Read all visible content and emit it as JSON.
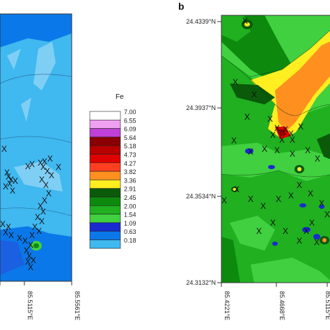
{
  "panel_b_label": "b",
  "legend": {
    "title": "Fe",
    "classes": [
      {
        "value": "7.00",
        "color": "#ffffff"
      },
      {
        "value": "6.55",
        "color": "#f0a0f0"
      },
      {
        "value": "6.09",
        "color": "#c040d8"
      },
      {
        "value": "5.64",
        "color": "#8a0000"
      },
      {
        "value": "5.18",
        "color": "#b80000"
      },
      {
        "value": "4.73",
        "color": "#e00000"
      },
      {
        "value": "4.27",
        "color": "#ff4020"
      },
      {
        "value": "3.82",
        "color": "#ff9020"
      },
      {
        "value": "3.36",
        "color": "#ffee20"
      },
      {
        "value": "2.91",
        "color": "#0a5a0a"
      },
      {
        "value": "2.45",
        "color": "#0d8a0d"
      },
      {
        "value": "2.00",
        "color": "#20b020"
      },
      {
        "value": "1.54",
        "color": "#40d040"
      },
      {
        "value": "1.09",
        "color": "#1a2ad0"
      },
      {
        "value": "0.63",
        "color": "#0a78e8"
      },
      {
        "value": "0.18",
        "color": "#40b8f0"
      }
    ]
  },
  "panel_a": {
    "x_ticks": [
      "85.5115°E",
      "85.5561°E"
    ]
  },
  "panel_b": {
    "y_ticks": [
      "24.4339°N",
      "24.3937°N",
      "24.3534°N",
      "24.3132°N"
    ],
    "x_ticks": [
      "85.4221°E",
      "85.4668°E",
      "85.5115°E"
    ]
  },
  "sample_marker": "X"
}
